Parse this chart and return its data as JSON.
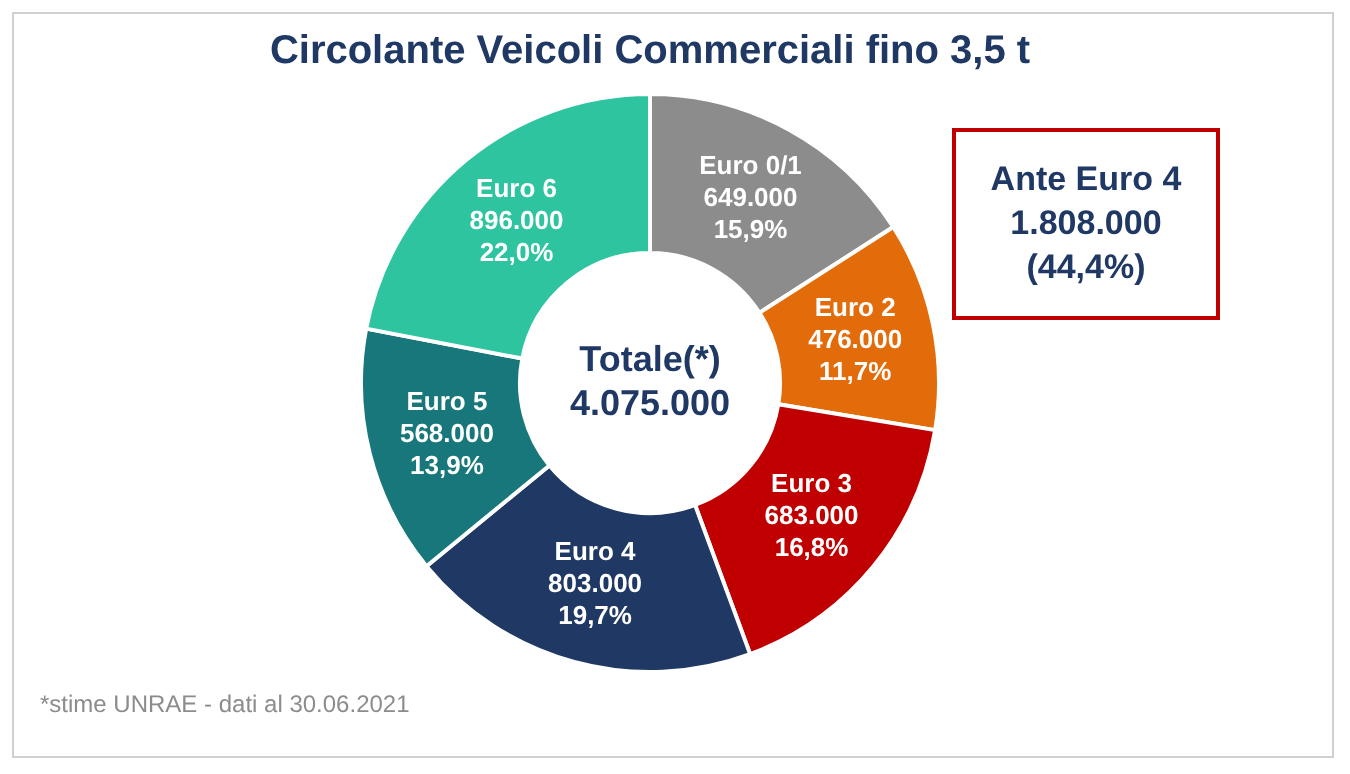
{
  "chart_data": {
    "type": "donut",
    "title": "Circolante Veicoli Commerciali fino 3,5 t",
    "categories": [
      "Euro 0/1",
      "Euro 2",
      "Euro 3",
      "Euro 4",
      "Euro 5",
      "Euro 6"
    ],
    "values": [
      649000,
      476000,
      683000,
      803000,
      568000,
      896000
    ],
    "colors": [
      "#8c8c8c",
      "#e36c0a",
      "#c00000",
      "#1f3864",
      "#17777a",
      "#2ec4a0"
    ],
    "value_labels": [
      "649.000\n15,9%",
      "476.000\n11,7%",
      "683.000\n16,8%",
      "803.000\n19,7%",
      "568.000\n13,9%",
      "896.000\n22,0%"
    ],
    "annotations": [
      "Totale(*)\n4.075.000",
      "Ante Euro 4\n1.808.000\n(44,4%)",
      "*stime UNRAE - dati al 30.06.2021"
    ],
    "legend": false
  }
}
